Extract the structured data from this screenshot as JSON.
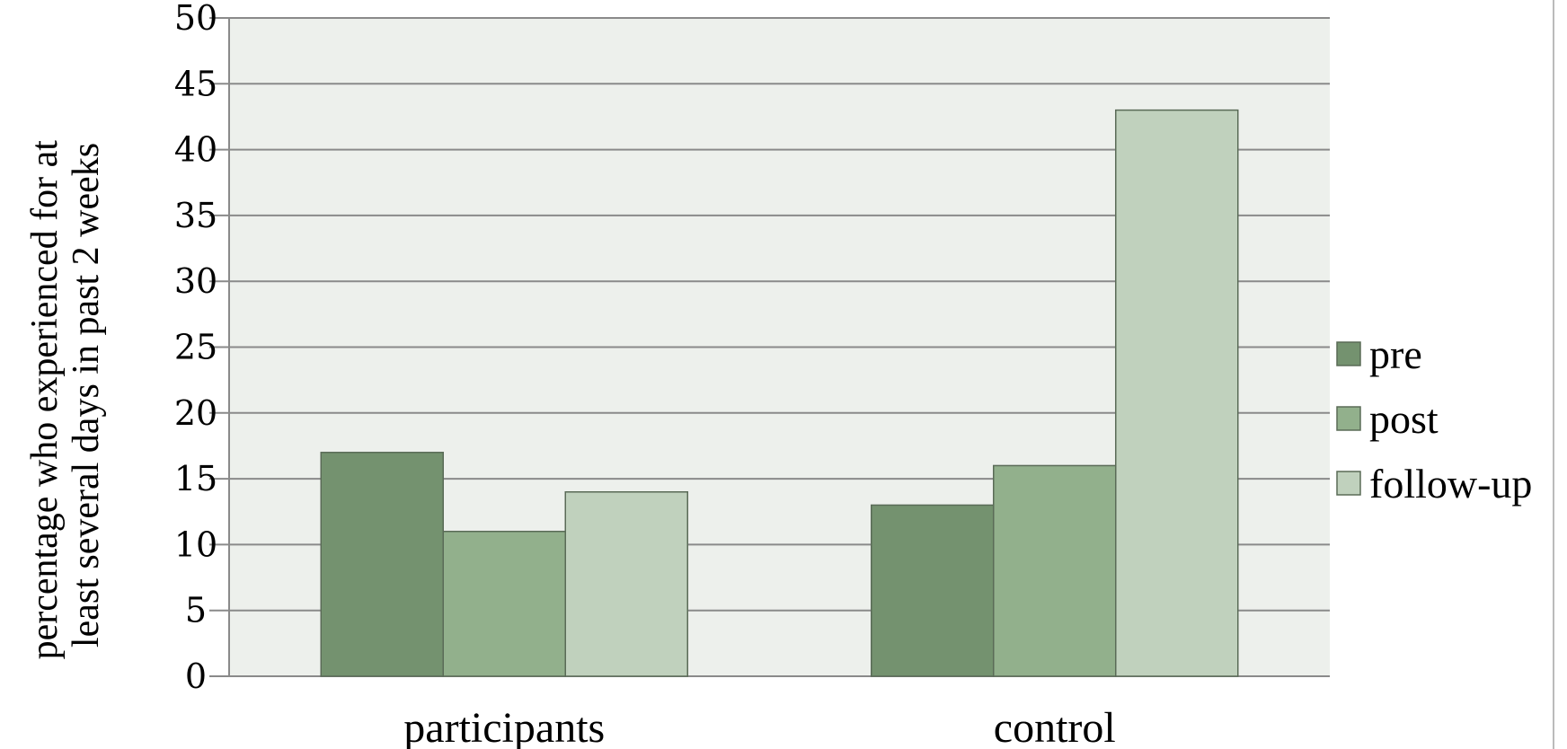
{
  "chart_data": {
    "type": "bar",
    "categories": [
      "participants",
      "control"
    ],
    "series": [
      {
        "name": "pre",
        "values": [
          17,
          13
        ],
        "color": "#74926f"
      },
      {
        "name": "post",
        "values": [
          11,
          16
        ],
        "color": "#92b08c"
      },
      {
        "name": "follow-up",
        "values": [
          14,
          43
        ],
        "color": "#c0d1bd"
      }
    ],
    "title": "",
    "xlabel": "",
    "ylabel": [
      "percentage who experienced for at",
      "least several days in past 2 weeks"
    ],
    "ylim": [
      0,
      50
    ],
    "yticks": [
      0,
      5,
      10,
      15,
      20,
      25,
      30,
      35,
      40,
      45,
      50
    ],
    "grid": true,
    "legend_position": "right",
    "plot_background": "#edf0ec",
    "gridline_color": "#8a8a8a",
    "bar_border_color": "#5a6b57"
  }
}
